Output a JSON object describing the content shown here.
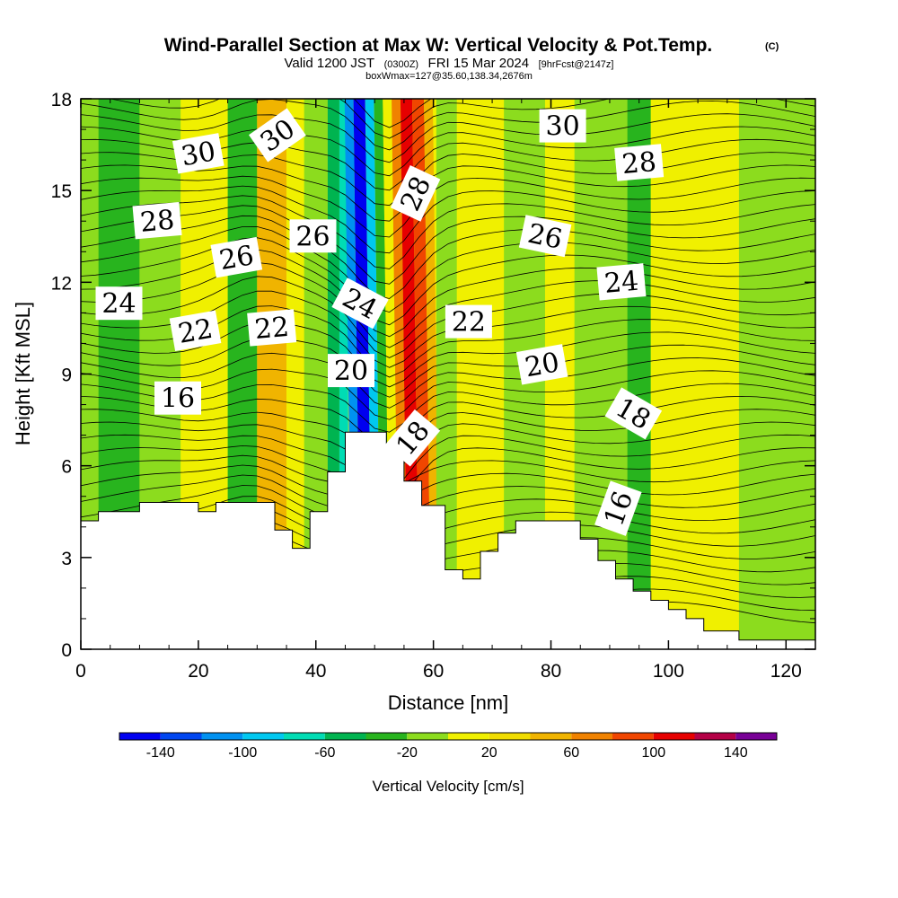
{
  "title": {
    "main": "Wind-Parallel Section at Max W: Vertical Velocity & Pot.Temp.",
    "copyright": "(C)",
    "line2_a": "Valid 1200 JST",
    "line2_zulu": "(0300Z)",
    "line2_b": "FRI 15 Mar 2024",
    "line2_fcst": "[9hrFcst@2147z]",
    "line3": "boxWmax=127@35.60,138.34,2676m"
  },
  "colors": {
    "background": "#ffffff",
    "terrain": "#ffffff",
    "contour": "#000000"
  },
  "chart_data": {
    "type": "heatmap",
    "xlabel": "Distance [nm]",
    "ylabel": "Height [Kft MSL]",
    "xlim": [
      0,
      125
    ],
    "ylim": [
      0,
      18
    ],
    "x_ticks": [
      "0",
      "20",
      "40",
      "60",
      "80",
      "100",
      "120"
    ],
    "y_ticks": [
      "0",
      "3",
      "6",
      "9",
      "12",
      "15",
      "18"
    ],
    "colorbar": {
      "title": "Vertical Velocity [cm/s]",
      "labels": [
        "-140",
        "-100",
        "-60",
        "-20",
        "20",
        "60",
        "100",
        "140"
      ],
      "bins": [
        {
          "from": -160,
          "to": -140,
          "color": "#0000f0"
        },
        {
          "from": -140,
          "to": -120,
          "color": "#0046f0"
        },
        {
          "from": -120,
          "to": -100,
          "color": "#0091f0"
        },
        {
          "from": -100,
          "to": -80,
          "color": "#00c8f0"
        },
        {
          "from": -80,
          "to": -60,
          "color": "#00dcb4"
        },
        {
          "from": -60,
          "to": -40,
          "color": "#00b450"
        },
        {
          "from": -40,
          "to": -20,
          "color": "#28b41e"
        },
        {
          "from": -20,
          "to": 0,
          "color": "#8cdc1e"
        },
        {
          "from": 0,
          "to": 20,
          "color": "#f0f000"
        },
        {
          "from": 20,
          "to": 40,
          "color": "#f0dc00"
        },
        {
          "from": 40,
          "to": 60,
          "color": "#f0b400"
        },
        {
          "from": 60,
          "to": 80,
          "color": "#f08200"
        },
        {
          "from": 80,
          "to": 100,
          "color": "#f04600"
        },
        {
          "from": 100,
          "to": 120,
          "color": "#e60000"
        },
        {
          "from": 120,
          "to": 140,
          "color": "#b40046"
        },
        {
          "from": 140,
          "to": 160,
          "color": "#780096"
        }
      ]
    },
    "velocity_bands": [
      {
        "x0": 0,
        "x1": 3,
        "w": -20
      },
      {
        "x0": 3,
        "x1": 10,
        "w": -30
      },
      {
        "x0": 10,
        "x1": 17,
        "w": -10
      },
      {
        "x0": 17,
        "x1": 25,
        "w": 10
      },
      {
        "x0": 25,
        "x1": 30,
        "w": -30
      },
      {
        "x0": 30,
        "x1": 35,
        "w": 40
      },
      {
        "x0": 35,
        "x1": 38,
        "w": 10
      },
      {
        "x0": 38,
        "x1": 42,
        "w": -10
      },
      {
        "x0": 42,
        "x1": 44,
        "w": -50
      },
      {
        "x0": 44,
        "x1": 45.5,
        "w": -70
      },
      {
        "x0": 45.5,
        "x1": 47,
        "w": -110
      },
      {
        "x0": 47,
        "x1": 49,
        "w": -150
      },
      {
        "x0": 49,
        "x1": 50.5,
        "w": -90
      },
      {
        "x0": 50.5,
        "x1": 52,
        "w": -30
      },
      {
        "x0": 52,
        "x1": 53.5,
        "w": 10
      },
      {
        "x0": 53.5,
        "x1": 55,
        "w": 70
      },
      {
        "x0": 55,
        "x1": 57,
        "w": 110
      },
      {
        "x0": 57,
        "x1": 59,
        "w": 90
      },
      {
        "x0": 59,
        "x1": 60.5,
        "w": 50
      },
      {
        "x0": 60.5,
        "x1": 64,
        "w": -10
      },
      {
        "x0": 64,
        "x1": 72,
        "w": 10
      },
      {
        "x0": 72,
        "x1": 79,
        "w": -10
      },
      {
        "x0": 79,
        "x1": 84,
        "w": 10
      },
      {
        "x0": 84,
        "x1": 93,
        "w": -10
      },
      {
        "x0": 93,
        "x1": 97,
        "w": -30
      },
      {
        "x0": 97,
        "x1": 104,
        "w": 10
      },
      {
        "x0": 104,
        "x1": 112,
        "w": 10
      },
      {
        "x0": 112,
        "x1": 125,
        "w": -10
      }
    ],
    "terrain_height": [
      {
        "x": 0,
        "y": 4.2
      },
      {
        "x": 3,
        "y": 4.2
      },
      {
        "x": 3,
        "y": 4.5
      },
      {
        "x": 10,
        "y": 4.5
      },
      {
        "x": 10,
        "y": 4.8
      },
      {
        "x": 20,
        "y": 4.8
      },
      {
        "x": 20,
        "y": 4.5
      },
      {
        "x": 23,
        "y": 4.5
      },
      {
        "x": 23,
        "y": 4.8
      },
      {
        "x": 33,
        "y": 4.8
      },
      {
        "x": 33,
        "y": 3.9
      },
      {
        "x": 36,
        "y": 3.9
      },
      {
        "x": 36,
        "y": 3.3
      },
      {
        "x": 39,
        "y": 3.3
      },
      {
        "x": 39,
        "y": 4.5
      },
      {
        "x": 42,
        "y": 4.5
      },
      {
        "x": 42,
        "y": 5.8
      },
      {
        "x": 45,
        "y": 5.8
      },
      {
        "x": 45,
        "y": 7.1
      },
      {
        "x": 52,
        "y": 7.1
      },
      {
        "x": 52,
        "y": 6.7
      },
      {
        "x": 55,
        "y": 6.7
      },
      {
        "x": 55,
        "y": 5.5
      },
      {
        "x": 58,
        "y": 5.5
      },
      {
        "x": 58,
        "y": 4.7
      },
      {
        "x": 62,
        "y": 4.7
      },
      {
        "x": 62,
        "y": 2.6
      },
      {
        "x": 65,
        "y": 2.6
      },
      {
        "x": 65,
        "y": 2.3
      },
      {
        "x": 68,
        "y": 2.3
      },
      {
        "x": 68,
        "y": 3.2
      },
      {
        "x": 71,
        "y": 3.2
      },
      {
        "x": 71,
        "y": 3.8
      },
      {
        "x": 74,
        "y": 3.8
      },
      {
        "x": 74,
        "y": 4.2
      },
      {
        "x": 85,
        "y": 4.2
      },
      {
        "x": 85,
        "y": 3.6
      },
      {
        "x": 88,
        "y": 3.6
      },
      {
        "x": 88,
        "y": 2.9
      },
      {
        "x": 91,
        "y": 2.9
      },
      {
        "x": 91,
        "y": 2.3
      },
      {
        "x": 94,
        "y": 2.3
      },
      {
        "x": 94,
        "y": 1.9
      },
      {
        "x": 97,
        "y": 1.9
      },
      {
        "x": 97,
        "y": 1.6
      },
      {
        "x": 100,
        "y": 1.6
      },
      {
        "x": 100,
        "y": 1.3
      },
      {
        "x": 103,
        "y": 1.3
      },
      {
        "x": 103,
        "y": 1.0
      },
      {
        "x": 106,
        "y": 1.0
      },
      {
        "x": 106,
        "y": 0.6
      },
      {
        "x": 112,
        "y": 0.6
      },
      {
        "x": 112,
        "y": 0.3
      },
      {
        "x": 125,
        "y": 0.3
      }
    ],
    "contour_labels": [
      {
        "text": "30",
        "x": 20,
        "y": 16.2,
        "angle": -10
      },
      {
        "text": "30",
        "x": 33.5,
        "y": 16.8,
        "angle": -35
      },
      {
        "text": "30",
        "x": 82,
        "y": 17.1,
        "angle": 0
      },
      {
        "text": "28",
        "x": 13,
        "y": 14.0,
        "angle": -5
      },
      {
        "text": "28",
        "x": 57,
        "y": 14.9,
        "angle": -65
      },
      {
        "text": "28",
        "x": 95,
        "y": 15.9,
        "angle": -5
      },
      {
        "text": "26",
        "x": 26.5,
        "y": 12.8,
        "angle": -10
      },
      {
        "text": "26",
        "x": 39.5,
        "y": 13.5,
        "angle": 0
      },
      {
        "text": "26",
        "x": 79,
        "y": 13.5,
        "angle": 12
      },
      {
        "text": "24",
        "x": 6.5,
        "y": 11.3,
        "angle": 0
      },
      {
        "text": "24",
        "x": 47.5,
        "y": 11.3,
        "angle": 28
      },
      {
        "text": "24",
        "x": 92,
        "y": 12.0,
        "angle": -5
      },
      {
        "text": "22",
        "x": 19.5,
        "y": 10.4,
        "angle": -10
      },
      {
        "text": "22",
        "x": 32.5,
        "y": 10.5,
        "angle": -5
      },
      {
        "text": "22",
        "x": 66,
        "y": 10.7,
        "angle": 0
      },
      {
        "text": "20",
        "x": 46,
        "y": 9.1,
        "angle": 0
      },
      {
        "text": "20",
        "x": 78.5,
        "y": 9.3,
        "angle": -10
      },
      {
        "text": "18",
        "x": 56.5,
        "y": 6.9,
        "angle": -50
      },
      {
        "text": "18",
        "x": 94,
        "y": 7.7,
        "angle": 30
      },
      {
        "text": "16",
        "x": 16.5,
        "y": 8.2,
        "angle": 0
      },
      {
        "text": "16",
        "x": 91.5,
        "y": 4.6,
        "angle": -70
      }
    ]
  }
}
